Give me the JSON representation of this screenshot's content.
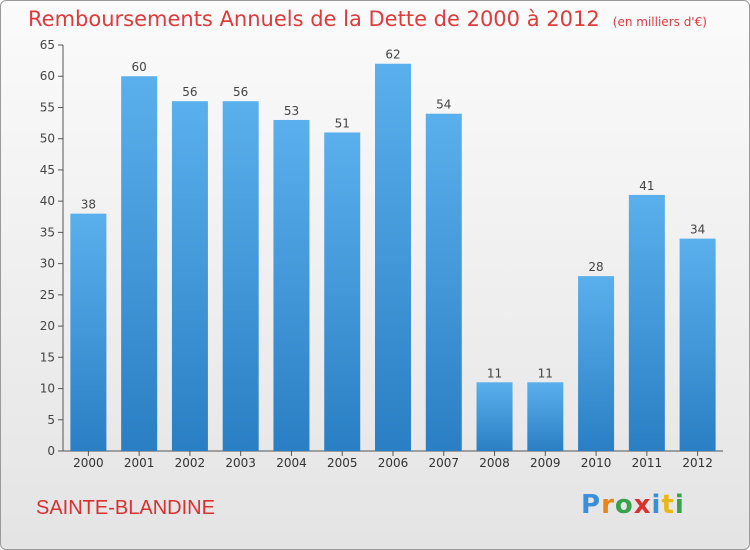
{
  "chart_data": {
    "type": "bar",
    "title": "Remboursements Annuels de la Dette de 2000 à 2012",
    "unit": "(en milliers d'€)",
    "categories": [
      "2000",
      "2001",
      "2002",
      "2003",
      "2004",
      "2005",
      "2006",
      "2007",
      "2008",
      "2009",
      "2010",
      "2011",
      "2012"
    ],
    "values": [
      38,
      60,
      56,
      56,
      53,
      51,
      62,
      54,
      11,
      11,
      28,
      41,
      34
    ],
    "ylim": [
      0,
      65
    ],
    "yticks": [
      0,
      5,
      10,
      15,
      20,
      25,
      30,
      35,
      40,
      45,
      50,
      55,
      60,
      65
    ],
    "grid": false,
    "bar_color_top": "#5ab0ec",
    "bar_color_bottom": "#2a7fc4"
  },
  "commune": "SAINTE-BLANDINE",
  "logo": {
    "text": "Proxiti",
    "letters": [
      {
        "ch": "P",
        "color": "#3a8fd8"
      },
      {
        "ch": "r",
        "color": "#e8841a"
      },
      {
        "ch": "o",
        "color": "#3aa04a"
      },
      {
        "ch": "x",
        "color": "#d8322c"
      },
      {
        "ch": "i",
        "color": "#3a8fd8"
      },
      {
        "ch": "t",
        "color": "#e8b81a"
      },
      {
        "ch": "i",
        "color": "#3aa04a"
      }
    ]
  },
  "colors": {
    "title": "#e03a3a",
    "commune": "#d93030",
    "axis": "#555555"
  }
}
